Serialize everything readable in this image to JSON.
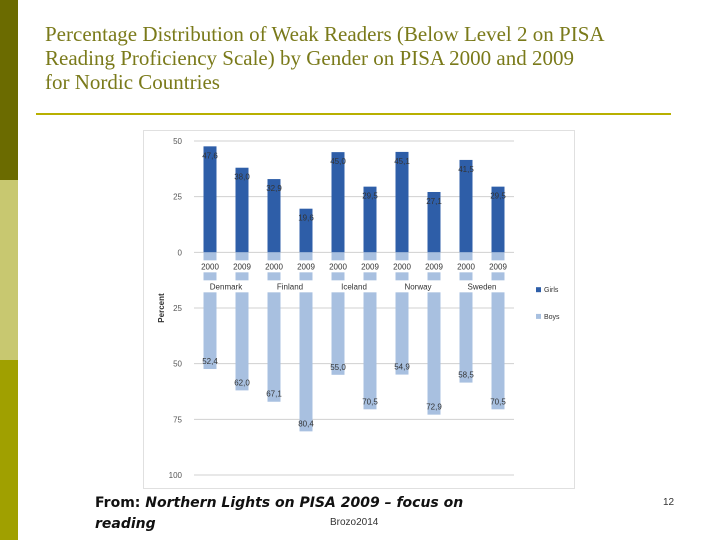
{
  "slide": {
    "title": "Percentage Distribution of Weak Readers (Below Level 2 on PISA\nReading Proficiency Scale) by Gender on PISA 2000 and 2009\nfor Nordic Countries",
    "source_label": "From: ",
    "source_text": "Northern Lights on PISA 2009 – focus on reading",
    "credit": "Brozo2014",
    "page_number": "12"
  },
  "colors": {
    "girls": "#2e5ea8",
    "boys": "#a8c0e0",
    "sidebar_dark": "#6b6b00",
    "sidebar_light": "#c8c870",
    "sidebar_mid": "#a0a000",
    "title": "#7a7a1a",
    "rule": "#b8b000"
  },
  "chart_data": {
    "type": "bar",
    "ylabel": "Percent",
    "ylim": [
      -100,
      50
    ],
    "y_ticks": [
      50,
      25,
      0,
      -25,
      -50,
      -75,
      -100
    ],
    "y_tick_labels": [
      "50",
      "25",
      "0",
      "25",
      "50",
      "75",
      "100"
    ],
    "grid": true,
    "legend_position": "right",
    "countries": [
      "Denmark",
      "Finland",
      "Iceland",
      "Norway",
      "Sweden"
    ],
    "categories": [
      "2000",
      "2009",
      "2000",
      "2009",
      "2000",
      "2009",
      "2000",
      "2009",
      "2000",
      "2009"
    ],
    "series": [
      {
        "name": "Girls",
        "values": [
          47.6,
          38.0,
          32.9,
          19.6,
          45.0,
          29.5,
          45.1,
          27.1,
          41.5,
          29.5
        ],
        "labels": [
          "47,6",
          "38,0",
          "32,9",
          "19,6",
          "45,0",
          "29,5",
          "45,1",
          "27,1",
          "41,5",
          "29,5"
        ]
      },
      {
        "name": "Boys",
        "values": [
          -52.4,
          -62.0,
          -67.1,
          -80.4,
          -55.0,
          -70.5,
          -54.9,
          -72.9,
          -58.5,
          -70.5
        ],
        "labels": [
          "52,4",
          "62,0",
          "67,1",
          "80,4",
          "55,0",
          "70,5",
          "54,9",
          "72,9",
          "58,5",
          "70,5"
        ]
      }
    ]
  }
}
